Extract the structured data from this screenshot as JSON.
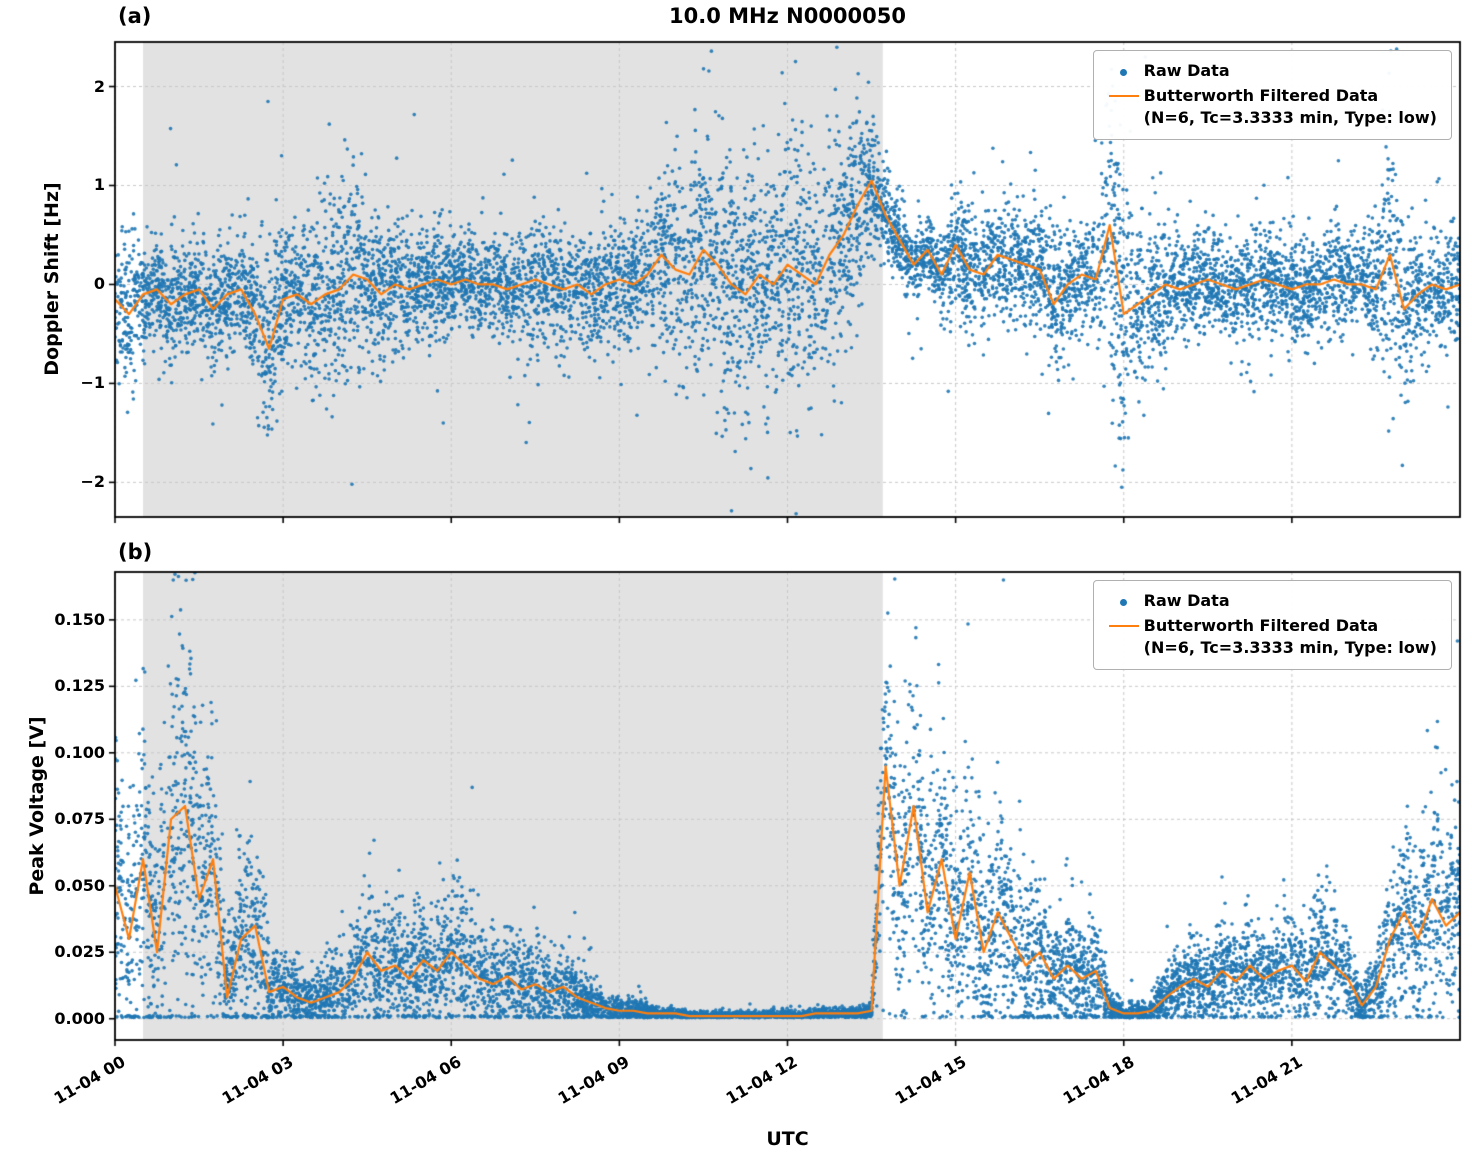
{
  "figure": {
    "title": "10.0 MHz N0000050",
    "xlabel": "UTC",
    "panel_a_label": "(a)",
    "panel_b_label": "(b)",
    "ylabel_a": "Doppler Shift [Hz]",
    "ylabel_b": "Peak Voltage [V]",
    "legend": {
      "raw_label": "Raw Data",
      "filtered_label": "Butterworth Filtered Data",
      "filtered_sublabel": "(N=6, Tc=3.3333 min, Type: low)"
    },
    "colors": {
      "raw": "#1f77b4",
      "filtered": "#ff7f0e",
      "shade": "#e2e2e2",
      "grid": "#c8c8c8",
      "spine": "#000000"
    }
  },
  "chart_data": [
    {
      "type": "scatter",
      "panel": "a",
      "title": "10.0 MHz N0000050",
      "ylabel": "Doppler Shift [Hz]",
      "xlabel": "UTC",
      "grid": true,
      "legend_position": "upper right",
      "series": [
        {
          "name": "Raw Data",
          "style": "scatter",
          "color": "#1f77b4"
        },
        {
          "name": "Butterworth Filtered Data (N=6, Tc=3.3333 min, Type: low)",
          "style": "line",
          "color": "#ff7f0e"
        }
      ],
      "xlim_hours": [
        0,
        24
      ],
      "xtick_hours": [
        0,
        3,
        6,
        9,
        12,
        15,
        18,
        21
      ],
      "xtick_labels": [
        "11-04 00",
        "11-04 03",
        "11-04 06",
        "11-04 09",
        "11-04 12",
        "11-04 15",
        "11-04 18",
        "11-04 21"
      ],
      "ylim": [
        -2.35,
        2.45
      ],
      "yticks": [
        -2,
        -1,
        0,
        1,
        2
      ],
      "ytick_labels": [
        "−2",
        "−1",
        "0",
        "1",
        "2"
      ],
      "shaded_region_hours": [
        0.5,
        13.7
      ],
      "sample_step_hours": 0.25,
      "filtered_values": [
        -0.15,
        -0.3,
        -0.1,
        -0.05,
        -0.2,
        -0.1,
        -0.05,
        -0.25,
        -0.1,
        -0.05,
        -0.3,
        -0.65,
        -0.15,
        -0.1,
        -0.2,
        -0.1,
        -0.05,
        0.1,
        0.05,
        -0.1,
        0,
        -0.05,
        0,
        0.05,
        0,
        0.05,
        0,
        0,
        -0.05,
        0,
        0.05,
        0,
        -0.05,
        0,
        -0.1,
        0,
        0.05,
        0,
        0.1,
        0.3,
        0.15,
        0.1,
        0.35,
        0.2,
        0,
        -0.1,
        0.1,
        0,
        0.2,
        0.1,
        0,
        0.3,
        0.5,
        0.8,
        1.05,
        0.7,
        0.45,
        0.2,
        0.35,
        0.1,
        0.4,
        0.15,
        0.1,
        0.3,
        0.25,
        0.2,
        0.15,
        -0.2,
        0,
        0.1,
        0.05,
        0.6,
        -0.3,
        -0.2,
        -0.1,
        0,
        -0.05,
        0,
        0.05,
        0,
        -0.05,
        0,
        0.05,
        0,
        -0.05,
        0,
        0,
        0.05,
        0,
        0,
        -0.05,
        0.3,
        -0.25,
        -0.1,
        0,
        -0.05,
        0
      ],
      "raw_spread": [
        0.35,
        0.4,
        0.3,
        0.25,
        0.3,
        0.25,
        0.25,
        0.3,
        0.3,
        0.3,
        0.4,
        0.55,
        0.35,
        0.3,
        0.45,
        0.5,
        0.45,
        0.5,
        0.4,
        0.35,
        0.3,
        0.3,
        0.25,
        0.3,
        0.25,
        0.25,
        0.25,
        0.25,
        0.25,
        0.3,
        0.35,
        0.3,
        0.3,
        0.25,
        0.35,
        0.3,
        0.3,
        0.3,
        0.35,
        0.45,
        0.5,
        0.55,
        0.6,
        0.65,
        0.65,
        0.6,
        0.55,
        0.6,
        0.6,
        0.65,
        0.6,
        0.6,
        0.55,
        0.45,
        0.3,
        0.25,
        0.2,
        0.2,
        0.15,
        0.25,
        0.25,
        0.3,
        0.3,
        0.3,
        0.3,
        0.35,
        0.3,
        0.4,
        0.3,
        0.25,
        0.3,
        0.75,
        0.7,
        0.45,
        0.3,
        0.3,
        0.25,
        0.25,
        0.25,
        0.25,
        0.25,
        0.3,
        0.25,
        0.25,
        0.25,
        0.3,
        0.25,
        0.3,
        0.25,
        0.25,
        0.3,
        0.7,
        0.45,
        0.3,
        0.25,
        0.3,
        0.3
      ]
    },
    {
      "type": "scatter",
      "panel": "b",
      "ylabel": "Peak Voltage [V]",
      "xlabel": "UTC",
      "grid": true,
      "legend_position": "upper right",
      "series": [
        {
          "name": "Raw Data",
          "style": "scatter",
          "color": "#1f77b4"
        },
        {
          "name": "Butterworth Filtered Data (N=6, Tc=3.3333 min, Type: low)",
          "style": "line",
          "color": "#ff7f0e"
        }
      ],
      "xlim_hours": [
        0,
        24
      ],
      "xtick_hours": [
        0,
        3,
        6,
        9,
        12,
        15,
        18,
        21
      ],
      "xtick_labels": [
        "11-04 00",
        "11-04 03",
        "11-04 06",
        "11-04 09",
        "11-04 12",
        "11-04 15",
        "11-04 18",
        "11-04 21"
      ],
      "ylim": [
        -0.008,
        0.168
      ],
      "yticks": [
        0,
        0.025,
        0.05,
        0.075,
        0.1,
        0.125,
        0.15
      ],
      "ytick_labels": [
        "0.000",
        "0.025",
        "0.050",
        "0.075",
        "0.100",
        "0.125",
        "0.150"
      ],
      "shaded_region_hours": [
        0.5,
        13.7
      ],
      "sample_step_hours": 0.25,
      "filtered_values": [
        0.05,
        0.03,
        0.06,
        0.025,
        0.075,
        0.08,
        0.045,
        0.06,
        0.008,
        0.03,
        0.035,
        0.01,
        0.012,
        0.008,
        0.006,
        0.008,
        0.01,
        0.015,
        0.025,
        0.018,
        0.02,
        0.015,
        0.022,
        0.018,
        0.025,
        0.02,
        0.015,
        0.013,
        0.016,
        0.011,
        0.013,
        0.01,
        0.012,
        0.008,
        0.006,
        0.004,
        0.003,
        0.003,
        0.002,
        0.002,
        0.002,
        0.001,
        0.001,
        0.001,
        0.001,
        0.001,
        0.001,
        0.001,
        0.001,
        0.001,
        0.002,
        0.002,
        0.002,
        0.002,
        0.003,
        0.095,
        0.05,
        0.08,
        0.04,
        0.06,
        0.03,
        0.055,
        0.025,
        0.04,
        0.03,
        0.02,
        0.025,
        0.015,
        0.02,
        0.015,
        0.018,
        0.004,
        0.002,
        0.002,
        0.003,
        0.008,
        0.012,
        0.015,
        0.012,
        0.018,
        0.014,
        0.02,
        0.015,
        0.018,
        0.02,
        0.014,
        0.025,
        0.02,
        0.015,
        0.005,
        0.012,
        0.03,
        0.04,
        0.03,
        0.045,
        0.035,
        0.04
      ],
      "raw_spread": [
        0.03,
        0.028,
        0.03,
        0.025,
        0.035,
        0.04,
        0.03,
        0.03,
        0.01,
        0.02,
        0.02,
        0.008,
        0.008,
        0.006,
        0.005,
        0.006,
        0.008,
        0.01,
        0.014,
        0.012,
        0.012,
        0.01,
        0.013,
        0.012,
        0.014,
        0.012,
        0.01,
        0.009,
        0.01,
        0.008,
        0.009,
        0.008,
        0.008,
        0.006,
        0.005,
        0.003,
        0.002,
        0.002,
        0.002,
        0.001,
        0.001,
        0.001,
        0.001,
        0.001,
        0.001,
        0.001,
        0.001,
        0.001,
        0.001,
        0.001,
        0.001,
        0.001,
        0.001,
        0.001,
        0.002,
        0.035,
        0.025,
        0.03,
        0.022,
        0.028,
        0.02,
        0.028,
        0.018,
        0.022,
        0.018,
        0.014,
        0.015,
        0.01,
        0.013,
        0.01,
        0.012,
        0.003,
        0.002,
        0.002,
        0.002,
        0.005,
        0.007,
        0.009,
        0.008,
        0.01,
        0.008,
        0.011,
        0.009,
        0.01,
        0.011,
        0.008,
        0.013,
        0.011,
        0.009,
        0.004,
        0.008,
        0.015,
        0.02,
        0.016,
        0.022,
        0.018,
        0.02
      ]
    }
  ]
}
